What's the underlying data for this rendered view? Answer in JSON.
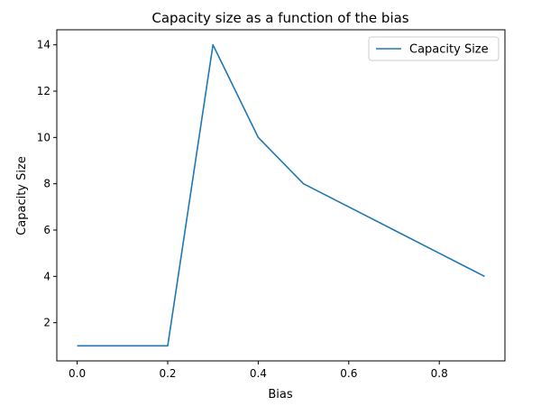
{
  "chart_data": {
    "type": "line",
    "title": "Capacity size as a function of the bias",
    "xlabel": "Bias",
    "ylabel": "Capacity Size",
    "x": [
      0.0,
      0.1,
      0.2,
      0.3,
      0.4,
      0.5,
      0.6,
      0.7,
      0.8,
      0.9
    ],
    "series": [
      {
        "name": "Capacity Size",
        "values": [
          1,
          1,
          1,
          14,
          10,
          8,
          7,
          6,
          5,
          4
        ],
        "color": "#1f77b4"
      }
    ],
    "xlim": [
      -0.045,
      0.945
    ],
    "ylim": [
      0.35,
      14.65
    ],
    "xticks": [
      0.0,
      0.2,
      0.4,
      0.6,
      0.8
    ],
    "xtick_labels": [
      "0.0",
      "0.2",
      "0.4",
      "0.6",
      "0.8"
    ],
    "yticks": [
      2,
      4,
      6,
      8,
      10,
      12,
      14
    ],
    "ytick_labels": [
      "2",
      "4",
      "6",
      "8",
      "10",
      "12",
      "14"
    ],
    "grid": false,
    "legend": "top-right"
  }
}
